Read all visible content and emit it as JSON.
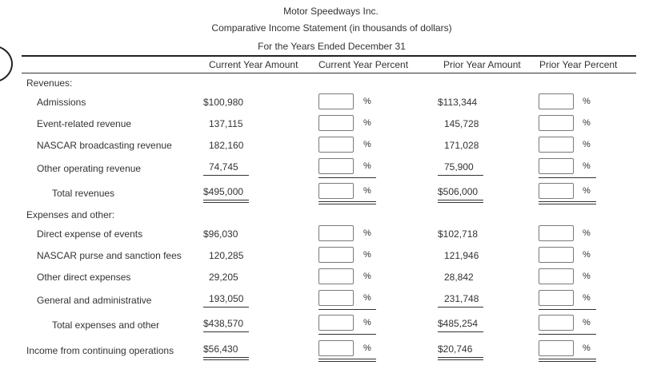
{
  "header": {
    "company": "Motor Speedways Inc.",
    "statement": "Comparative Income Statement (in thousands of dollars)",
    "period": "For the Years Ended December 31"
  },
  "columns": {
    "current_amount": "Current Year Amount",
    "current_percent": "Current Year Percent",
    "prior_amount": "Prior Year Amount",
    "prior_percent": "Prior Year Percent"
  },
  "percent_sign": "%",
  "sections": {
    "revenues": "Revenues:",
    "expenses": "Expenses and other:"
  },
  "rows": [
    {
      "label": "Admissions",
      "current": "$100,980",
      "prior": "$113,344"
    },
    {
      "label": "Event-related revenue",
      "current": "137,115",
      "prior": "145,728"
    },
    {
      "label": "NASCAR broadcasting revenue",
      "current": "182,160",
      "prior": "171,028"
    },
    {
      "label": "Other operating revenue",
      "current": "74,745",
      "prior": "75,900"
    },
    {
      "label": "Total revenues",
      "current": "$495,000",
      "prior": "$506,000"
    },
    {
      "label": "Direct expense of events",
      "current": "$96,030",
      "prior": "$102,718"
    },
    {
      "label": "NASCAR purse and sanction fees",
      "current": "120,285",
      "prior": "121,946"
    },
    {
      "label": "Other direct expenses",
      "current": "29,205",
      "prior": "28,842"
    },
    {
      "label": "General and administrative",
      "current": "193,050",
      "prior": "231,748"
    },
    {
      "label": "Total expenses and other",
      "current": "$438,570",
      "prior": "$485,254"
    },
    {
      "label": "Income from continuing operations",
      "current": "$56,430",
      "prior": "$20,746"
    }
  ]
}
